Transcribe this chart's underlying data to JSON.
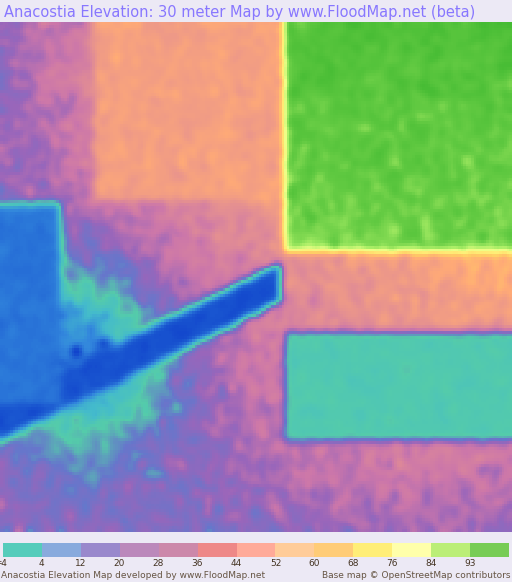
{
  "title": "Anacostia Elevation: 30 meter Map by www.FloodMap.net (beta)",
  "title_color": "#8877ff",
  "title_fontsize": 10.5,
  "bg_color": "#ece9f5",
  "colorbar_colors": [
    "#55ccbb",
    "#88aadd",
    "#9988cc",
    "#bb88bb",
    "#cc88aa",
    "#ee8888",
    "#ffaa99",
    "#ffcc99",
    "#ffcc77",
    "#ffee77",
    "#ffffaa",
    "#bbee77",
    "#77cc55"
  ],
  "colorbar_values": [
    "-4",
    "4",
    "12",
    "20",
    "28",
    "36",
    "44",
    "52",
    "60",
    "68",
    "76",
    "84",
    "93"
  ],
  "footer_left": "Anacostia Elevation Map developed by www.FloodMap.net",
  "footer_right": "Base map © OpenStreetMap contributors",
  "footer_fontsize": 6.5,
  "meter_label": "meter"
}
